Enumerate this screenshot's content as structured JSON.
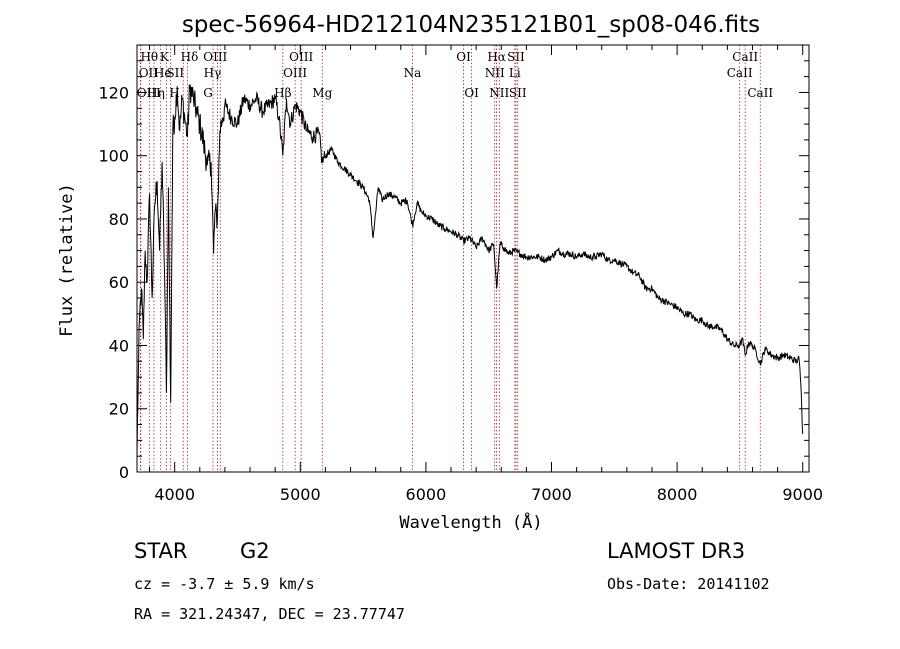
{
  "chart_data": {
    "type": "line",
    "title": "spec-56964-HD212104N235121B01_sp08-046.fits",
    "xlabel": "Wavelength (Å)",
    "ylabel": "Flux (relative)",
    "xlim": [
      3700,
      9050
    ],
    "ylim": [
      0,
      135
    ],
    "xticks": [
      4000,
      5000,
      6000,
      7000,
      8000,
      9000
    ],
    "yticks": [
      0,
      20,
      40,
      60,
      80,
      100,
      120
    ],
    "line_color": "#000000",
    "marker_color": "#b22222",
    "spectrum": {
      "x": [
        3700,
        3710,
        3720,
        3735,
        3750,
        3765,
        3780,
        3800,
        3820,
        3840,
        3860,
        3880,
        3900,
        3920,
        3934,
        3950,
        3968,
        3985,
        4000,
        4020,
        4040,
        4060,
        4080,
        4102,
        4120,
        4150,
        4180,
        4200,
        4230,
        4260,
        4290,
        4310,
        4320,
        4340,
        4360,
        4380,
        4400,
        4450,
        4500,
        4550,
        4600,
        4650,
        4700,
        4750,
        4800,
        4830,
        4861,
        4890,
        4920,
        4960,
        5000,
        5050,
        5100,
        5150,
        5173,
        5200,
        5250,
        5300,
        5350,
        5400,
        5450,
        5500,
        5550,
        5580,
        5620,
        5650,
        5700,
        5750,
        5800,
        5850,
        5893,
        5930,
        5970,
        6000,
        6050,
        6100,
        6150,
        6200,
        6250,
        6300,
        6350,
        6400,
        6450,
        6500,
        6540,
        6563,
        6590,
        6620,
        6660,
        6700,
        6750,
        6800,
        6850,
        6900,
        6950,
        7000,
        7050,
        7100,
        7150,
        7200,
        7250,
        7300,
        7350,
        7400,
        7450,
        7500,
        7550,
        7600,
        7650,
        7700,
        7750,
        7800,
        7850,
        7900,
        7950,
        8000,
        8050,
        8100,
        8150,
        8200,
        8250,
        8300,
        8350,
        8400,
        8450,
        8498,
        8520,
        8542,
        8570,
        8600,
        8630,
        8662,
        8700,
        8750,
        8800,
        8850,
        8900,
        8950,
        8970,
        8985,
        9000
      ],
      "y": [
        5,
        30,
        48,
        58,
        42,
        70,
        60,
        88,
        55,
        84,
        92,
        70,
        98,
        62,
        25,
        90,
        22,
        108,
        112,
        122,
        108,
        118,
        112,
        106,
        122,
        118,
        113,
        110,
        104,
        97,
        98,
        69,
        82,
        80,
        108,
        112,
        116,
        112,
        110,
        118,
        116,
        118,
        114,
        116,
        118,
        112,
        100,
        118,
        110,
        116,
        114,
        108,
        106,
        107,
        98,
        100,
        102,
        98,
        96,
        94,
        92,
        90,
        86,
        74,
        90,
        86,
        88,
        87,
        85,
        86,
        78,
        85,
        82,
        81,
        80,
        78,
        77,
        76,
        75,
        73,
        74,
        71,
        74,
        70,
        72,
        58,
        72,
        71,
        69,
        70,
        69,
        68,
        68,
        68,
        67,
        68,
        70,
        69,
        69,
        68,
        69,
        68,
        68,
        69,
        67,
        67,
        66,
        65,
        63,
        62,
        58,
        58,
        55,
        54,
        53,
        52,
        50,
        50,
        48,
        48,
        46,
        46,
        45,
        42,
        40,
        40,
        42,
        37,
        41,
        40,
        38,
        34,
        39,
        37,
        36,
        37,
        36,
        35,
        36,
        28,
        12
      ]
    },
    "line_markers": [
      {
        "name": "Hθ",
        "wavelength": 3798,
        "row": 1,
        "dx": 0
      },
      {
        "name": "OII",
        "wavelength": 3727,
        "row": 2,
        "dx": 8
      },
      {
        "name": "OIII",
        "wavelength": 3730,
        "row": 3,
        "dx": 8
      },
      {
        "name": "K",
        "wavelength": 3934,
        "row": 1,
        "dx": -2
      },
      {
        "name": "He",
        "wavelength": 3889,
        "row": 2,
        "dx": 2
      },
      {
        "name": "Hη",
        "wavelength": 3835,
        "row": 3,
        "dx": 2
      },
      {
        "name": "SII",
        "wavelength": 4068,
        "row": 2,
        "dx": -8
      },
      {
        "name": "H",
        "wavelength": 3968,
        "row": 3,
        "dx": 4
      },
      {
        "name": "Hδ",
        "wavelength": 4102,
        "row": 1,
        "dx": 2
      },
      {
        "name": "OIII",
        "wavelength": 4363,
        "row": 1,
        "dx": -5
      },
      {
        "name": "Hγ",
        "wavelength": 4340,
        "row": 2,
        "dx": -5
      },
      {
        "name": "G",
        "wavelength": 4305,
        "row": 3,
        "dx": -5
      },
      {
        "name": "OIII",
        "wavelength": 5007,
        "row": 1,
        "dx": 0
      },
      {
        "name": "OIII",
        "wavelength": 4959,
        "row": 2,
        "dx": 0
      },
      {
        "name": "Hβ",
        "wavelength": 4861,
        "row": 3,
        "dx": 0
      },
      {
        "name": "Mg",
        "wavelength": 5175,
        "row": 3,
        "dx": 0
      },
      {
        "name": "Na",
        "wavelength": 5893,
        "row": 2,
        "dx": 0
      },
      {
        "name": "OI",
        "wavelength": 6300,
        "row": 1,
        "dx": 0
      },
      {
        "name": "OI",
        "wavelength": 6364,
        "row": 3,
        "dx": 0
      },
      {
        "name": "Hα",
        "wavelength": 6563,
        "row": 1,
        "dx": 0
      },
      {
        "name": "NII",
        "wavelength": 6548,
        "row": 2,
        "dx": 0
      },
      {
        "name": "NII",
        "wavelength": 6584,
        "row": 3,
        "dx": 0
      },
      {
        "name": "SII",
        "wavelength": 6717,
        "row": 1,
        "dx": 0
      },
      {
        "name": "Li",
        "wavelength": 6708,
        "row": 2,
        "dx": 0
      },
      {
        "name": "SII",
        "wavelength": 6731,
        "row": 3,
        "dx": 0
      },
      {
        "name": "CaII",
        "wavelength": 8542,
        "row": 1,
        "dx": 0
      },
      {
        "name": "CaII",
        "wavelength": 8498,
        "row": 2,
        "dx": 0
      },
      {
        "name": "CaII",
        "wavelength": 8662,
        "row": 3,
        "dx": 0
      }
    ]
  },
  "info": {
    "class": "STAR",
    "subclass": "G2",
    "survey": "LAMOST DR3",
    "redshift": "cz = -3.7 ± 5.9 km/s",
    "obs_date": "Obs-Date: 20141102",
    "coords": "RA = 321.24347, DEC =  23.77747"
  }
}
